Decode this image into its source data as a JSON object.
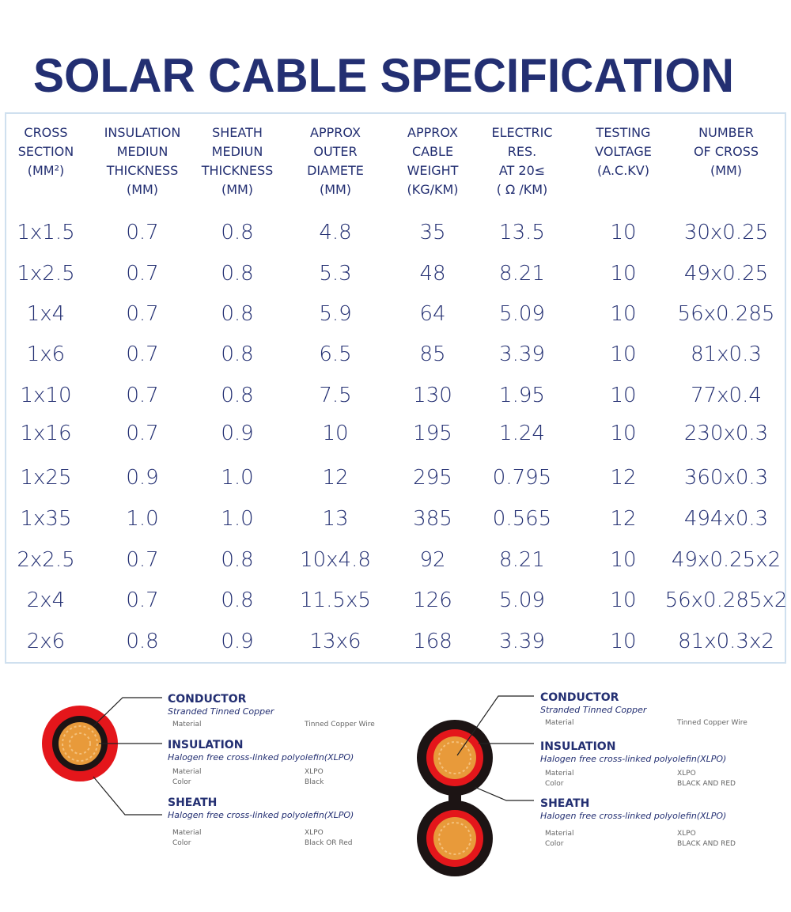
{
  "title": "SOLAR CABLE SPECIFICATION",
  "table": {
    "headers": [
      [
        "CROSS",
        "SECTION",
        "(MM²)"
      ],
      [
        "INSULATION",
        "MEDIUN",
        "THICKNESS",
        "(MM)"
      ],
      [
        "SHEATH",
        "MEDIUN",
        "THICKNESS",
        "(MM)"
      ],
      [
        "APPROX",
        "OUTER",
        "DIAMETE",
        "(MM)"
      ],
      [
        "APPROX",
        "CABLE",
        "WEIGHT",
        "(KG/KM)"
      ],
      [
        "ELECTRIC",
        "RES.",
        "AT 20≤",
        "( Ω /KM)"
      ],
      [
        "TESTING",
        "VOLTAGE",
        "(A.C.KV)"
      ],
      [
        "NUMBER",
        "OF CROSS",
        "(MM)"
      ]
    ],
    "rows": [
      [
        "1x1.5",
        "0.7",
        "0.8",
        "4.8",
        "35",
        "13.5",
        "10",
        "30x0.25"
      ],
      [
        "1x2.5",
        "0.7",
        "0.8",
        "5.3",
        "48",
        "8.21",
        "10",
        "49x0.25"
      ],
      [
        "1x4",
        "0.7",
        "0.8",
        "5.9",
        "64",
        "5.09",
        "10",
        "56x0.285"
      ],
      [
        "1x6",
        "0.7",
        "0.8",
        "6.5",
        "85",
        "3.39",
        "10",
        "81x0.3"
      ],
      [
        "1x10",
        "0.7",
        "0.8",
        "7.5",
        "130",
        "1.95",
        "10",
        "77x0.4"
      ],
      [
        "1x16",
        "0.7",
        "0.9",
        "10",
        "195",
        "1.24",
        "10",
        "230x0.3"
      ],
      [
        "1x25",
        "0.9",
        "1.0",
        "12",
        "295",
        "0.795",
        "12",
        "360x0.3"
      ],
      [
        "1x35",
        "1.0",
        "1.0",
        "13",
        "385",
        "0.565",
        "12",
        "494x0.3"
      ],
      [
        "2x2.5",
        "0.7",
        "0.8",
        "10x4.8",
        "92",
        "8.21",
        "10",
        "49x0.25x2"
      ],
      [
        "2x4",
        "0.7",
        "0.8",
        "11.5x5",
        "126",
        "5.09",
        "10",
        "56x0.285x2"
      ],
      [
        "2x6",
        "0.8",
        "0.9",
        "13x6",
        "168",
        "3.39",
        "10",
        "81x0.3x2"
      ]
    ]
  },
  "diagrams": [
    {
      "sections": [
        {
          "name": "CONDUCTOR",
          "description": "Stranded Tinned Copper",
          "properties": [
            [
              "Material",
              "Tinned Copper Wire"
            ]
          ]
        },
        {
          "name": "INSULATION",
          "description": "Halogen free cross-linked polyolefin(XLPO)",
          "properties": [
            [
              "Material",
              "XLPO"
            ],
            [
              "Color",
              "Black"
            ]
          ]
        },
        {
          "name": "SHEATH",
          "description": "Halogen free cross-linked polyolefin(XLPO)",
          "properties": [
            [
              "Material",
              "XLPO"
            ],
            [
              "Color",
              "Black OR Red"
            ]
          ]
        }
      ]
    },
    {
      "sections": [
        {
          "name": "CONDUCTOR",
          "description": "Stranded Tinned Copper",
          "properties": [
            [
              "Material",
              "Tinned Copper Wire"
            ]
          ]
        },
        {
          "name": "INSULATION",
          "description": "Halogen free cross-linked polyolefin(XLPO)",
          "properties": [
            [
              "Material",
              "XLPO"
            ],
            [
              "Color",
              "BLACK AND RED"
            ]
          ]
        },
        {
          "name": "SHEATH",
          "description": "Halogen free cross-linked polyolefin(XLPO)",
          "properties": [
            [
              "Material",
              "XLPO"
            ],
            [
              "Color",
              "BLACK AND RED"
            ]
          ]
        }
      ]
    }
  ]
}
